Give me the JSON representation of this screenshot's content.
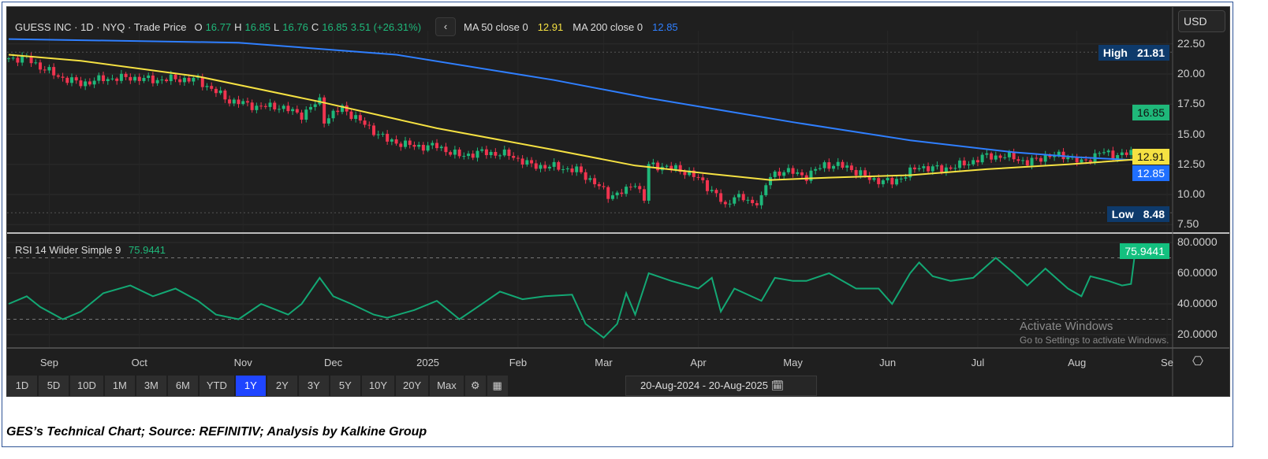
{
  "header": {
    "title": "GUESS INC · 1D · NYQ · Trade Price",
    "o_label": "O",
    "o": "16.77",
    "h_label": "H",
    "h": "16.85",
    "l_label": "L",
    "l": "16.76",
    "c_label": "C",
    "c": "16.85",
    "change": "3.51 (+26.31%)",
    "back_icon": "‹",
    "ma50_label": "MA 50 close 0",
    "ma50": "12.91",
    "ma200_label": "MA 200 close 0",
    "ma200": "12.85"
  },
  "currency": "USD",
  "tags": {
    "high_label": "High",
    "high": "21.81",
    "last": "16.85",
    "ma50": "12.91",
    "ma200": "12.85",
    "low_label": "Low",
    "low": "8.48",
    "rsi": "75.9441"
  },
  "rsi_header": {
    "label": "RSI 14 Wilder Simple 9",
    "value": "75.9441"
  },
  "toolbar": {
    "ranges": [
      "1D",
      "5D",
      "10D",
      "1M",
      "3M",
      "6M",
      "YTD",
      "1Y",
      "2Y",
      "3Y",
      "5Y",
      "10Y",
      "20Y",
      "Max"
    ],
    "selected": "1Y",
    "gear_icon": "⚙",
    "layout_icon": "▦",
    "date_from": "20-Aug-2024",
    "date_sep": "-",
    "date_to": "20-Aug-2025",
    "calendar_icon": "🗓"
  },
  "watermark": {
    "line1": "Activate Windows",
    "line2": "Go to Settings to activate Windows."
  },
  "caption": "GES’s Technical Chart; Source: REFINITIV; Analysis by Kalkine Group",
  "colors": {
    "up": "#1fb87a",
    "down": "#f0344f",
    "ma50": "#f5e142",
    "ma200": "#2f7fff",
    "rsi": "#13a874"
  },
  "chart_data": [
    {
      "type": "candlestick",
      "title": "GUESS INC · 1D · NYQ · Trade Price",
      "x_unit": "trading day since 20-Aug-2024",
      "yticks": [
        "22.50",
        "20.00",
        "17.50",
        "15.00",
        "12.50",
        "10.00",
        "7.50"
      ],
      "ylim": [
        7.5,
        22.5
      ],
      "xticks": [
        {
          "label": "Sep",
          "day": 9
        },
        {
          "label": "Oct",
          "day": 29
        },
        {
          "label": "Nov",
          "day": 52
        },
        {
          "label": "Dec",
          "day": 72
        },
        {
          "label": "2025",
          "day": 93
        },
        {
          "label": "Feb",
          "day": 113
        },
        {
          "label": "Mar",
          "day": 132
        },
        {
          "label": "Apr",
          "day": 153
        },
        {
          "label": "May",
          "day": 174
        },
        {
          "label": "Jun",
          "day": 195
        },
        {
          "label": "Jul",
          "day": 215
        },
        {
          "label": "Aug",
          "day": 237
        },
        {
          "label": "Se",
          "day": 257
        }
      ],
      "close": [
        [
          0,
          21.3
        ],
        [
          4,
          21.3
        ],
        [
          7,
          20.6
        ],
        [
          11,
          19.8
        ],
        [
          16,
          19.2
        ],
        [
          21,
          19.6
        ],
        [
          27,
          19.7
        ],
        [
          32,
          19.5
        ],
        [
          37,
          19.6
        ],
        [
          42,
          19.5
        ],
        [
          46,
          18.5
        ],
        [
          49,
          17.8
        ],
        [
          55,
          17.3
        ],
        [
          60,
          17.3
        ],
        [
          65,
          16.6
        ],
        [
          69,
          17.8
        ],
        [
          70,
          16.2
        ],
        [
          74,
          17.2
        ],
        [
          79,
          15.8
        ],
        [
          84,
          14.5
        ],
        [
          90,
          14.0
        ],
        [
          95,
          14.0
        ],
        [
          100,
          13.2
        ],
        [
          105,
          13.5
        ],
        [
          111,
          13.3
        ],
        [
          116,
          12.4
        ],
        [
          121,
          12.3
        ],
        [
          126,
          12.0
        ],
        [
          130,
          11.0
        ],
        [
          133,
          9.9
        ],
        [
          137,
          10.3
        ],
        [
          139,
          11.0
        ],
        [
          141,
          9.6
        ],
        [
          142,
          12.4
        ],
        [
          146,
          12.3
        ],
        [
          151,
          11.8
        ],
        [
          154,
          11.0
        ],
        [
          157,
          10.0
        ],
        [
          159,
          8.9
        ],
        [
          161,
          10.0
        ],
        [
          165,
          9.2
        ],
        [
          167,
          9.8
        ],
        [
          169,
          11.5
        ],
        [
          172,
          12.0
        ],
        [
          177,
          11.5
        ],
        [
          181,
          12.5
        ],
        [
          186,
          12.3
        ],
        [
          191,
          11.3
        ],
        [
          196,
          11.0
        ],
        [
          202,
          12.3
        ],
        [
          207,
          12.1
        ],
        [
          212,
          12.5
        ],
        [
          217,
          13.2
        ],
        [
          223,
          13.1
        ],
        [
          226,
          12.6
        ],
        [
          230,
          13.2
        ],
        [
          235,
          13.2
        ],
        [
          238,
          12.6
        ],
        [
          242,
          13.5
        ],
        [
          245,
          13.3
        ],
        [
          249,
          13.4
        ]
      ],
      "last_candle": {
        "day": 250,
        "open": 16.77,
        "high": 16.85,
        "low": 16.76,
        "close": 16.85
      },
      "high": 21.81,
      "low": 8.48,
      "series": [
        {
          "name": "MA 50 close 0",
          "last": 12.91,
          "points": [
            [
              0,
              21.6
            ],
            [
              16,
              21.1
            ],
            [
              42,
              19.8
            ],
            [
              69,
              17.7
            ],
            [
              95,
              15.5
            ],
            [
              121,
              13.7
            ],
            [
              139,
              12.4
            ],
            [
              156,
              11.7
            ],
            [
              169,
              11.2
            ],
            [
              182,
              11.4
            ],
            [
              200,
              11.6
            ],
            [
              217,
              12.1
            ],
            [
              235,
              12.5
            ],
            [
              250,
              12.91
            ]
          ]
        },
        {
          "name": "MA 200 close 0",
          "last": 12.85,
          "points": [
            [
              0,
              22.9
            ],
            [
              51,
              22.6
            ],
            [
              86,
              21.6
            ],
            [
              121,
              19.5
            ],
            [
              142,
              18.0
            ],
            [
              174,
              16.0
            ],
            [
              200,
              14.5
            ],
            [
              223,
              13.5
            ],
            [
              237,
              13.1
            ],
            [
              250,
              12.85
            ]
          ]
        }
      ]
    },
    {
      "type": "line",
      "title": "RSI 14 Wilder Simple 9",
      "yticks": [
        "80.0000",
        "60.0000",
        "40.0000",
        "20.0000"
      ],
      "ylim": [
        15,
        82
      ],
      "bands": [
        30,
        70
      ],
      "series": [
        {
          "name": "RSI",
          "last": 75.9441,
          "points": [
            [
              0,
              40
            ],
            [
              4,
              45
            ],
            [
              7,
              38
            ],
            [
              12,
              30
            ],
            [
              16,
              35
            ],
            [
              21,
              47
            ],
            [
              27,
              52
            ],
            [
              32,
              45
            ],
            [
              37,
              50
            ],
            [
              42,
              42
            ],
            [
              46,
              33
            ],
            [
              51,
              30
            ],
            [
              56,
              40
            ],
            [
              62,
              33
            ],
            [
              65,
              40
            ],
            [
              69,
              57
            ],
            [
              72,
              45
            ],
            [
              76,
              40
            ],
            [
              81,
              33
            ],
            [
              84,
              31
            ],
            [
              90,
              36
            ],
            [
              95,
              42
            ],
            [
              100,
              30
            ],
            [
              104,
              38
            ],
            [
              109,
              48
            ],
            [
              114,
              43
            ],
            [
              119,
              45
            ],
            [
              125,
              46
            ],
            [
              128,
              27
            ],
            [
              132,
              18
            ],
            [
              135,
              27
            ],
            [
              137,
              47
            ],
            [
              139,
              33
            ],
            [
              142,
              60
            ],
            [
              147,
              55
            ],
            [
              153,
              50
            ],
            [
              156,
              57
            ],
            [
              158,
              35
            ],
            [
              161,
              50
            ],
            [
              167,
              42
            ],
            [
              170,
              57
            ],
            [
              174,
              55
            ],
            [
              177,
              55
            ],
            [
              182,
              60
            ],
            [
              188,
              50
            ],
            [
              193,
              50
            ],
            [
              196,
              40
            ],
            [
              200,
              60
            ],
            [
              202,
              67
            ],
            [
              205,
              58
            ],
            [
              209,
              55
            ],
            [
              214,
              57
            ],
            [
              219,
              70
            ],
            [
              223,
              60
            ],
            [
              226,
              52
            ],
            [
              230,
              63
            ],
            [
              235,
              50
            ],
            [
              238,
              45
            ],
            [
              240,
              58
            ],
            [
              244,
              55
            ],
            [
              247,
              52
            ],
            [
              249,
              53
            ],
            [
              250,
              75.9441
            ]
          ]
        }
      ]
    }
  ]
}
